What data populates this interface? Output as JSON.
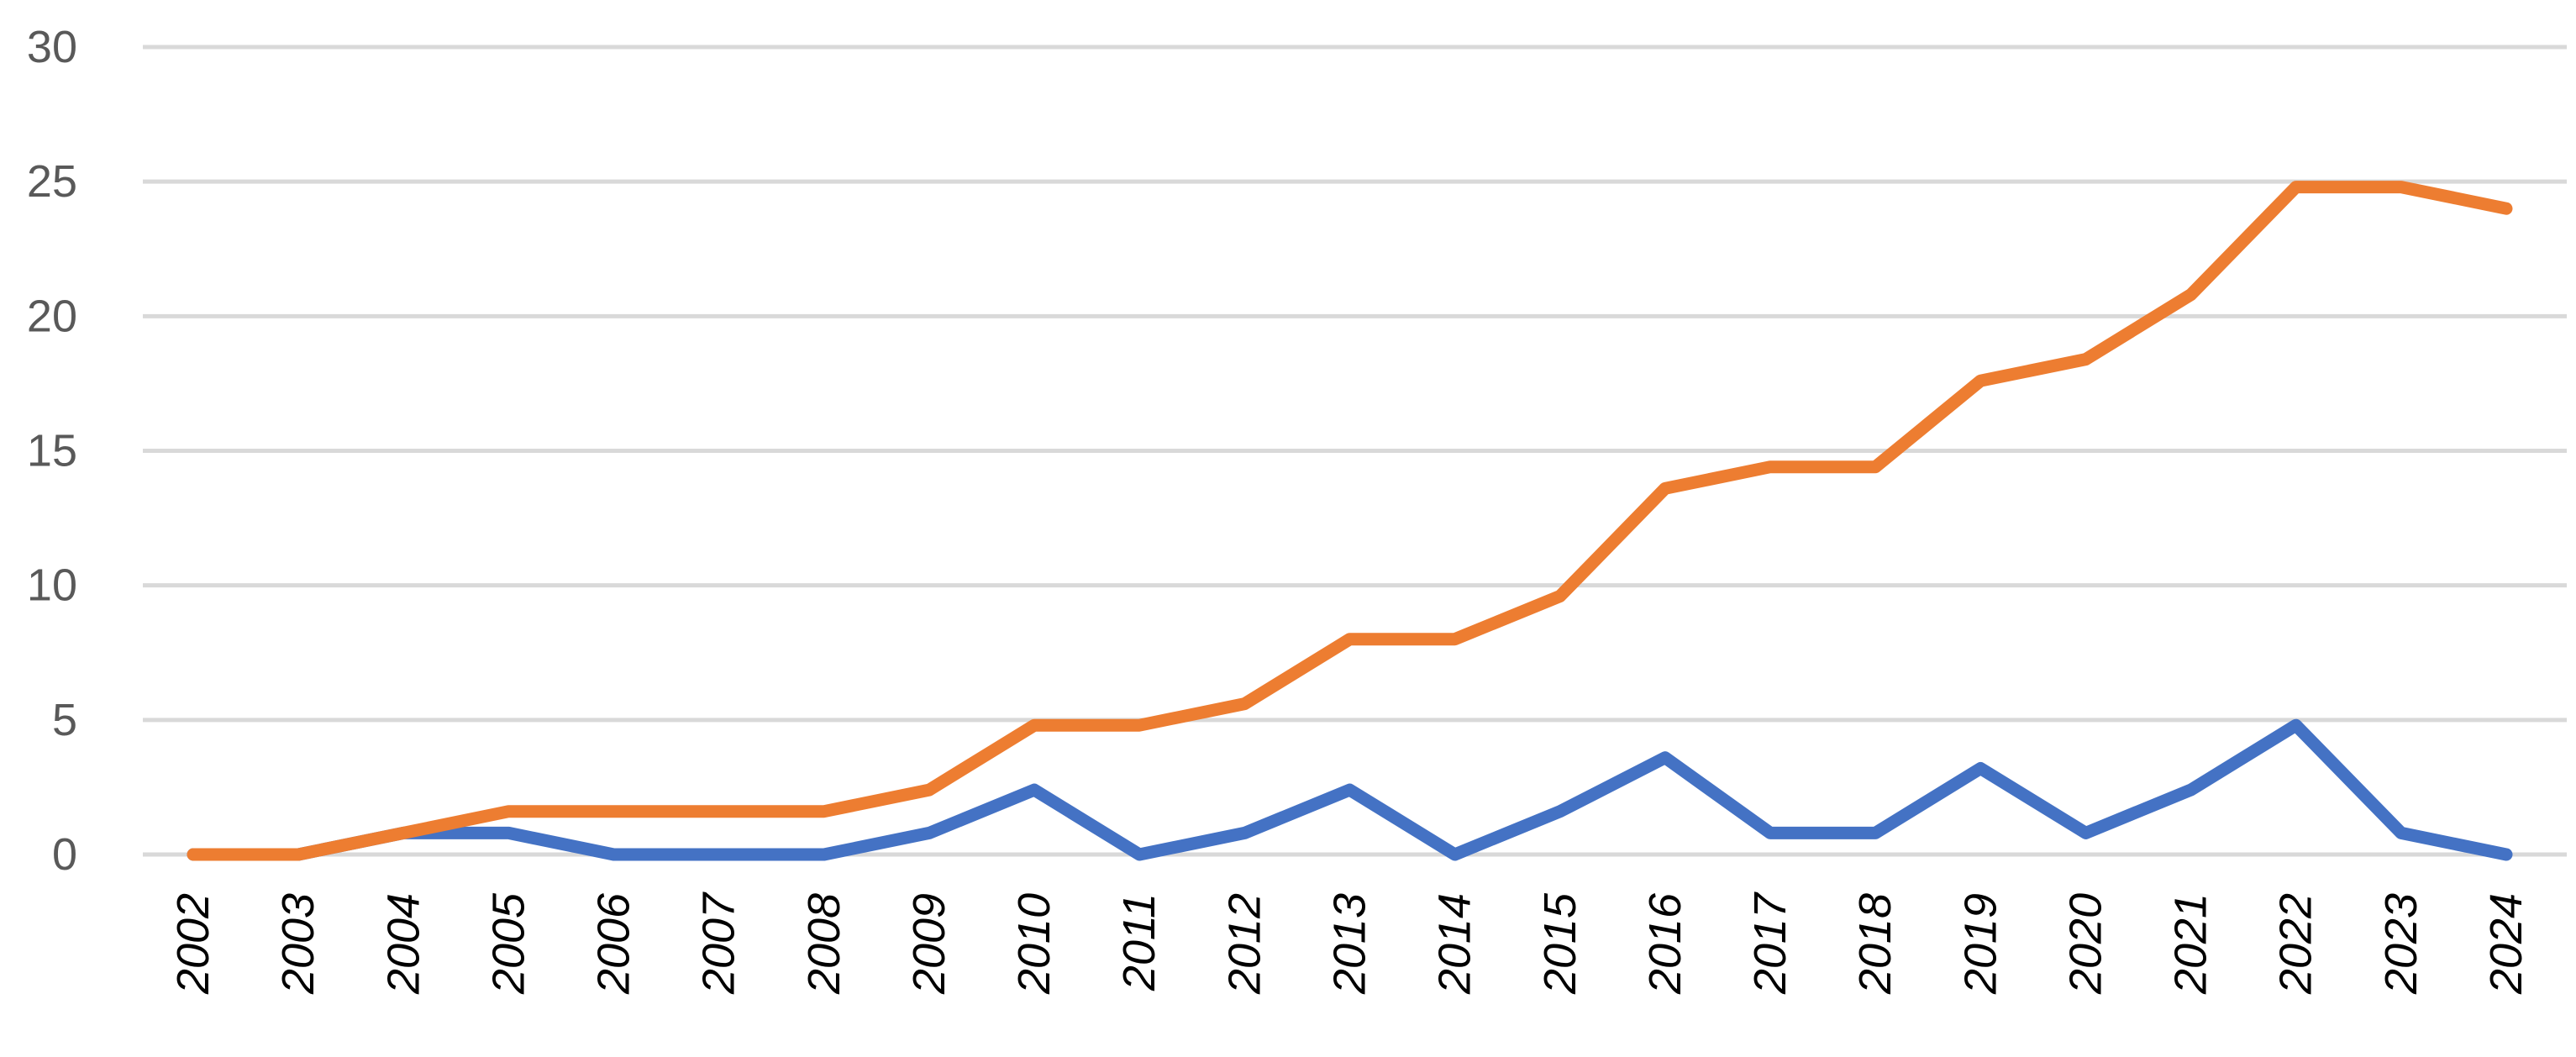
{
  "chart_data": {
    "type": "line",
    "title": "",
    "xlabel": "",
    "ylabel": "",
    "x": [
      "2002",
      "2003",
      "2004",
      "2005",
      "2006",
      "2007",
      "2008",
      "2009",
      "2010",
      "2011",
      "2012",
      "2013",
      "2014",
      "2015",
      "2016",
      "2017",
      "2018",
      "2019",
      "2020",
      "2021",
      "2022",
      "2023",
      "2024"
    ],
    "ylim": [
      0,
      30
    ],
    "yticks": [
      "0",
      "5",
      "10",
      "15",
      "20",
      "25",
      "30"
    ],
    "grid": true,
    "legend": "none",
    "x_tick_rotation": "vertical",
    "x_tick_style": "italic",
    "series": [
      {
        "color": "#4472C4",
        "values": [
          0,
          0,
          0.8,
          0.8,
          0,
          0,
          0,
          0.8,
          2.4,
          0,
          0.8,
          2.4,
          0,
          1.6,
          3.6,
          0.8,
          0.8,
          3.2,
          0.8,
          2.4,
          4.8,
          0.8,
          0
        ]
      },
      {
        "color": "#ED7D31",
        "values": [
          0,
          0,
          0.8,
          1.6,
          1.6,
          1.6,
          1.6,
          2.4,
          4.8,
          4.8,
          5.6,
          8.0,
          8.0,
          9.6,
          13.6,
          14.4,
          14.4,
          17.6,
          18.4,
          20.8,
          24.8,
          24.8,
          24.0
        ]
      }
    ]
  }
}
